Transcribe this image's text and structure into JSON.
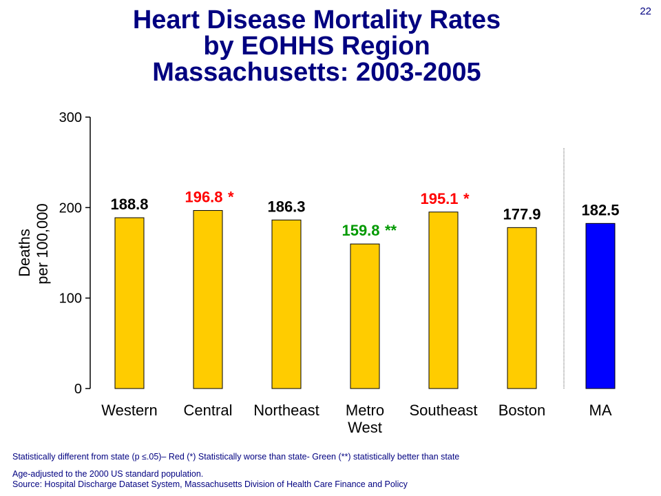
{
  "page_number": "22",
  "title_lines": [
    "Heart Disease Mortality Rates",
    "by EOHHS Region",
    "Massachusetts: 2003-2005"
  ],
  "notes": {
    "significance": "Statistically different from state (p ≤.05)– Red (*) Statistically worse than state- Green (**) statistically better than state",
    "age_adjusted": "Age-adjusted to the 2000 US standard population.",
    "source": "Source:  Hospital Discharge Dataset System, Massachusetts Division of Health Care Finance and Policy"
  },
  "colors": {
    "title": "#000080",
    "region_bar": "#FFCC00",
    "state_bar": "#0000FF",
    "worse": "#FF0000",
    "better": "#009900",
    "neutral": "#000000"
  },
  "chart_data": {
    "type": "bar",
    "title": "Heart Disease Mortality Rates by EOHHS Region Massachusetts: 2003-2005",
    "ylabel_lines": [
      "Deaths",
      "per 100,000"
    ],
    "ylim": [
      0,
      300
    ],
    "yticks": [
      0,
      100,
      200,
      300
    ],
    "categories": [
      "Western",
      "Central",
      "Northeast",
      "Metro\nWest",
      "Southeast",
      "Boston",
      "MA"
    ],
    "values": [
      188.8,
      196.8,
      186.3,
      159.8,
      195.1,
      177.9,
      182.5
    ],
    "value_labels": [
      "188.8",
      "196.8",
      "186.3",
      "159.8",
      "195.1",
      "177.9",
      "182.5"
    ],
    "markers": [
      "",
      "*",
      "",
      "**",
      "*",
      "",
      ""
    ],
    "status": [
      "neutral",
      "worse",
      "neutral",
      "better",
      "worse",
      "neutral",
      "neutral"
    ],
    "grid": false,
    "separator_before_last": true
  }
}
